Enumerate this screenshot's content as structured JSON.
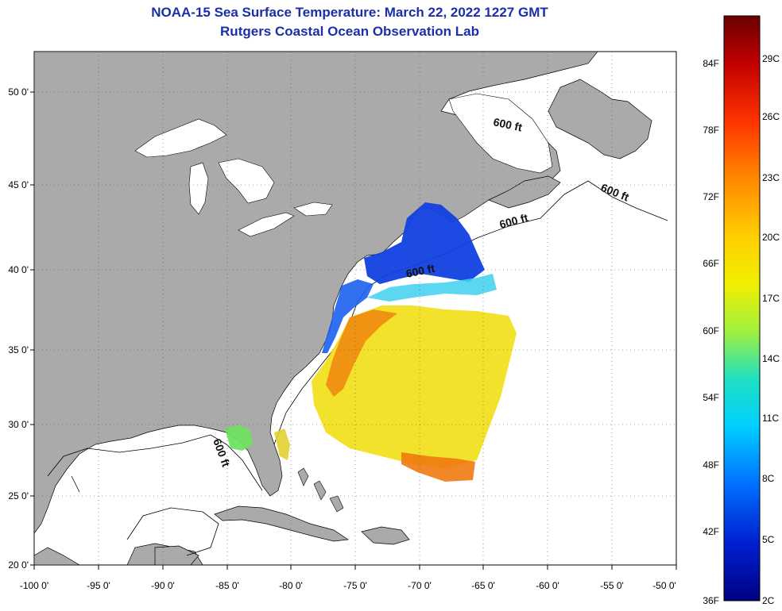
{
  "title": {
    "line1": "NOAA-15 Sea Surface Temperature:  March 22, 2022 1227 GMT",
    "line2": "Rutgers Coastal Ocean Observation Lab"
  },
  "axes": {
    "x_ticks": [
      "-100 0'",
      "-95 0'",
      "-90 0'",
      "-85 0'",
      "-80 0'",
      "-75 0'",
      "-70 0'",
      "-65 0'",
      "-60 0'",
      "-55 0'",
      "-50 0'"
    ],
    "y_ticks": [
      "50 0'",
      "45 0'",
      "40 0'",
      "35 0'",
      "30 0'",
      "25 0'",
      "20 0'"
    ]
  },
  "contour_labels": [
    "600 ft",
    "600 ft",
    "600 ft",
    "600 ft",
    "600 ft"
  ],
  "colorbar": {
    "fahrenheit": [
      "84F",
      "78F",
      "72F",
      "66F",
      "60F",
      "54F",
      "48F",
      "42F",
      "36F"
    ],
    "celsius": [
      "29C",
      "26C",
      "23C",
      "20C",
      "17C",
      "14C",
      "11C",
      "8C",
      "5C",
      "2C"
    ],
    "colors": [
      "#7a0000",
      "#d40000",
      "#ff5a00",
      "#ffa500",
      "#ffe000",
      "#c8f000",
      "#40e0a0",
      "#00e0ff",
      "#0090ff",
      "#0030e0",
      "#00008a"
    ]
  },
  "colors": {
    "land": "#aaaaaa",
    "water": "#ffffff",
    "title": "#1a2fa8"
  }
}
